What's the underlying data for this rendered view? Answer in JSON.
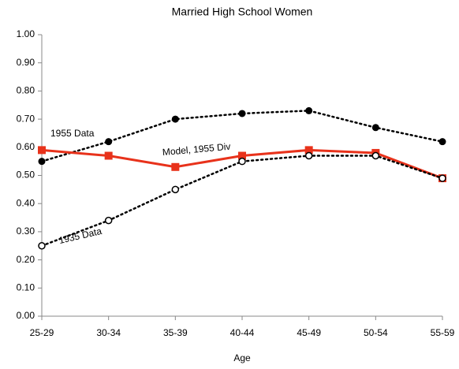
{
  "chart_data": {
    "type": "line",
    "title": "Married High School Women",
    "x_label": "Age",
    "categories": [
      "25-29",
      "30-34",
      "35-39",
      "40-44",
      "45-49",
      "50-54",
      "55-59"
    ],
    "series": [
      {
        "name": "1955 Data",
        "color": "#000000",
        "line_style": "dotted",
        "marker": "filled-circle",
        "values": [
          0.55,
          0.62,
          0.7,
          0.72,
          0.73,
          0.67,
          0.62
        ]
      },
      {
        "name": "Model, 1955 Div",
        "color": "#e8321b",
        "line_style": "solid",
        "marker": "square",
        "values": [
          0.59,
          0.57,
          0.53,
          0.57,
          0.59,
          0.58,
          0.49
        ]
      },
      {
        "name": "1935 Data",
        "color": "#000000",
        "line_style": "dotted",
        "marker": "open-circle",
        "values": [
          0.25,
          0.34,
          0.45,
          0.55,
          0.57,
          0.57,
          0.49
        ]
      }
    ],
    "ylim": [
      0,
      1
    ],
    "yticks": [
      {
        "value": 0,
        "label": "0.00"
      },
      {
        "value": 0.1,
        "label": "0.10"
      },
      {
        "value": 0.2,
        "label": "0.20"
      },
      {
        "value": 0.3,
        "label": "0.30"
      },
      {
        "value": 0.4,
        "label": "0.40"
      },
      {
        "value": 0.5,
        "label": "0.50"
      },
      {
        "value": 0.6,
        "label": "0.60"
      },
      {
        "value": 0.7,
        "label": "0.70"
      },
      {
        "value": 0.8,
        "label": "0.80"
      },
      {
        "value": 0.9,
        "label": "0.90"
      },
      {
        "value": 1,
        "label": "1.00"
      }
    ],
    "grid": false
  }
}
